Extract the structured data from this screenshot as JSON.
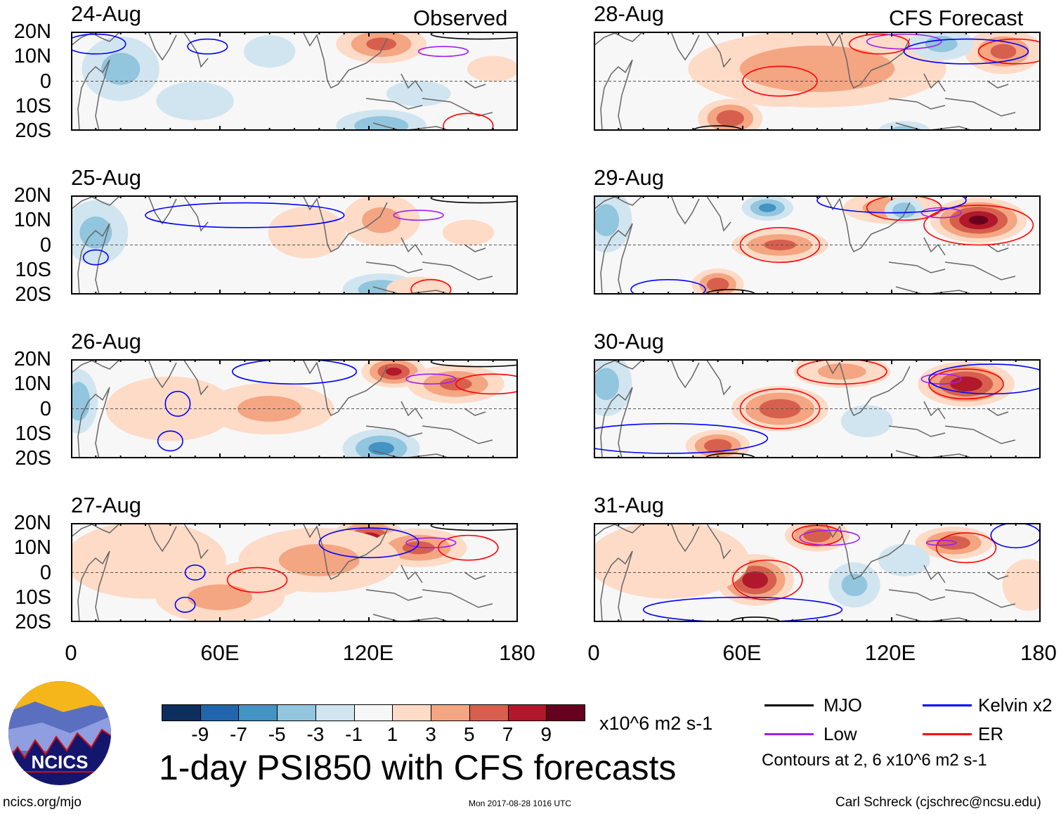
{
  "corner_labels": {
    "observed": "Observed",
    "forecast": "CFS Forecast"
  },
  "lat_labels": [
    "20N",
    "10N",
    "0",
    "10S",
    "20S"
  ],
  "lon_labels": [
    "0",
    "60E",
    "120E",
    "180"
  ],
  "panels": [
    {
      "date": "24-Aug",
      "fill": [
        [
          125,
          15,
          5,
          14,
          6
        ],
        [
          20,
          5,
          -3,
          12,
          10
        ],
        [
          125,
          -18,
          -4,
          14,
          5
        ],
        [
          50,
          -8,
          -2,
          12,
          6
        ],
        [
          170,
          5,
          2,
          8,
          4
        ],
        [
          80,
          12,
          -2,
          8,
          5
        ],
        [
          140,
          -5,
          -1,
          10,
          4
        ]
      ],
      "contours": [
        [
          "ER",
          160,
          -18,
          10,
          5
        ],
        [
          "Low",
          150,
          12,
          10,
          2
        ],
        [
          "Kelvin",
          10,
          15,
          12,
          4
        ],
        [
          "Kelvin",
          55,
          14,
          8,
          3
        ],
        [
          "MJO",
          165,
          19,
          20,
          2
        ]
      ]
    },
    {
      "date": "25-Aug",
      "fill": [
        [
          125,
          10,
          3,
          12,
          8
        ],
        [
          95,
          5,
          2,
          12,
          8
        ],
        [
          10,
          5,
          -3,
          10,
          10
        ],
        [
          125,
          -18,
          -4,
          12,
          5
        ],
        [
          160,
          5,
          2,
          8,
          4
        ],
        [
          140,
          -18,
          1,
          10,
          4
        ]
      ],
      "contours": [
        [
          "ER",
          145,
          -18,
          8,
          4
        ],
        [
          "Low",
          140,
          12,
          10,
          2
        ],
        [
          "Kelvin",
          70,
          12,
          40,
          5
        ],
        [
          "Kelvin",
          10,
          -5,
          5,
          3
        ],
        [
          "MJO",
          165,
          19,
          20,
          2
        ]
      ]
    },
    {
      "date": "26-Aug",
      "fill": [
        [
          130,
          15,
          7,
          10,
          5
        ],
        [
          155,
          10,
          5,
          15,
          6
        ],
        [
          80,
          0,
          3,
          20,
          8
        ],
        [
          40,
          0,
          2,
          20,
          10
        ],
        [
          125,
          -16,
          -5,
          12,
          6
        ],
        [
          3,
          3,
          -4,
          6,
          10
        ]
      ],
      "contours": [
        [
          "ER",
          170,
          10,
          15,
          4
        ],
        [
          "Low",
          145,
          12,
          10,
          2
        ],
        [
          "Kelvin",
          90,
          15,
          25,
          5
        ],
        [
          "Kelvin",
          43,
          2,
          5,
          5
        ],
        [
          "Kelvin",
          40,
          -13,
          5,
          4
        ],
        [
          "MJO",
          165,
          19,
          20,
          2
        ]
      ]
    },
    {
      "date": "27-Aug",
      "fill": [
        [
          120,
          12,
          9,
          12,
          8
        ],
        [
          140,
          10,
          5,
          15,
          6
        ],
        [
          75,
          -3,
          5,
          15,
          6
        ],
        [
          100,
          5,
          3,
          25,
          10
        ],
        [
          30,
          5,
          2,
          25,
          12
        ],
        [
          60,
          -10,
          3,
          20,
          8
        ]
      ],
      "contours": [
        [
          "ER",
          75,
          -3,
          12,
          5
        ],
        [
          "ER",
          160,
          10,
          12,
          5
        ],
        [
          "Low",
          145,
          12,
          10,
          2
        ],
        [
          "Kelvin",
          120,
          12,
          20,
          6
        ],
        [
          "Kelvin",
          50,
          0,
          4,
          3
        ],
        [
          "Kelvin",
          46,
          -13,
          4,
          3
        ],
        [
          "MJO",
          165,
          19,
          20,
          2
        ]
      ]
    },
    {
      "date": "28-Aug",
      "fill": [
        [
          75,
          0,
          8,
          18,
          8
        ],
        [
          115,
          12,
          7,
          15,
          6
        ],
        [
          55,
          -15,
          6,
          10,
          6
        ],
        [
          165,
          12,
          5,
          12,
          7
        ],
        [
          90,
          5,
          4,
          40,
          12
        ],
        [
          140,
          15,
          -3,
          10,
          5
        ],
        [
          125,
          -20,
          -3,
          8,
          3
        ]
      ],
      "contours": [
        [
          "ER",
          75,
          0,
          15,
          6
        ],
        [
          "ER",
          115,
          15,
          12,
          4
        ],
        [
          "ER",
          170,
          12,
          15,
          5
        ],
        [
          "Low",
          125,
          16,
          15,
          3
        ],
        [
          "Kelvin",
          150,
          12,
          25,
          5
        ],
        [
          "MJO",
          50,
          -20,
          10,
          2
        ]
      ]
    },
    {
      "date": "29-Aug",
      "fill": [
        [
          155,
          10,
          9,
          15,
          7
        ],
        [
          75,
          0,
          5,
          15,
          5
        ],
        [
          50,
          -16,
          6,
          8,
          5
        ],
        [
          120,
          15,
          4,
          15,
          5
        ],
        [
          70,
          15,
          -5,
          8,
          4
        ],
        [
          125,
          14,
          -4,
          6,
          4
        ],
        [
          5,
          10,
          -3,
          8,
          10
        ]
      ],
      "contours": [
        [
          "ER",
          75,
          0,
          16,
          7
        ],
        [
          "ER",
          125,
          15,
          15,
          5
        ],
        [
          "ER",
          155,
          8,
          22,
          8
        ],
        [
          "Low",
          140,
          13,
          8,
          2
        ],
        [
          "Kelvin",
          120,
          18,
          30,
          5
        ],
        [
          "Kelvin",
          30,
          -18,
          15,
          4
        ],
        [
          "MJO",
          55,
          -20,
          10,
          2
        ]
      ]
    },
    {
      "date": "30-Aug",
      "fill": [
        [
          150,
          10,
          8,
          15,
          7
        ],
        [
          75,
          0,
          6,
          15,
          7
        ],
        [
          50,
          -15,
          6,
          10,
          5
        ],
        [
          90,
          18,
          7,
          6,
          4
        ],
        [
          100,
          15,
          3,
          15,
          5
        ],
        [
          5,
          10,
          -3,
          8,
          10
        ],
        [
          110,
          -5,
          -2,
          8,
          5
        ]
      ],
      "contours": [
        [
          "ER",
          75,
          0,
          16,
          8
        ],
        [
          "ER",
          100,
          15,
          18,
          5
        ],
        [
          "ER",
          150,
          10,
          15,
          6
        ],
        [
          "Low",
          140,
          12,
          8,
          2
        ],
        [
          "Kelvin",
          30,
          -12,
          40,
          6
        ],
        [
          "Kelvin",
          160,
          12,
          25,
          6
        ],
        [
          "MJO",
          55,
          -20,
          10,
          2
        ]
      ]
    },
    {
      "date": "31-Aug",
      "fill": [
        [
          65,
          -3,
          8,
          12,
          8
        ],
        [
          90,
          15,
          6,
          10,
          5
        ],
        [
          145,
          12,
          6,
          12,
          5
        ],
        [
          105,
          -5,
          -3,
          8,
          7
        ],
        [
          125,
          5,
          -2,
          8,
          5
        ],
        [
          30,
          5,
          2,
          25,
          12
        ],
        [
          175,
          -5,
          2,
          8,
          8
        ]
      ],
      "contours": [
        [
          "ER",
          70,
          -3,
          14,
          8
        ],
        [
          "ER",
          90,
          15,
          10,
          4
        ],
        [
          "ER",
          150,
          10,
          12,
          6
        ],
        [
          "Low",
          95,
          14,
          12,
          3
        ],
        [
          "Low",
          140,
          12,
          6,
          1
        ],
        [
          "Kelvin",
          60,
          -15,
          40,
          5
        ],
        [
          "Kelvin",
          170,
          15,
          10,
          5
        ],
        [
          "MJO",
          65,
          -20,
          10,
          2
        ]
      ]
    }
  ],
  "colorbar": {
    "colors": [
      "#0c2f5e",
      "#2166ac",
      "#4393c3",
      "#92c5de",
      "#d1e5f0",
      "#f7f7f7",
      "#fddbc7",
      "#f4a582",
      "#d6604d",
      "#b2182b",
      "#67001f"
    ],
    "labels": [
      "-9",
      "-7",
      "-5",
      "-3",
      "-1",
      "1",
      "3",
      "5",
      "7",
      "9"
    ],
    "units": "x10^6 m2 s-1"
  },
  "title": "1-day PSI850 with CFS forecasts",
  "legend": {
    "items": [
      {
        "label": "MJO",
        "color": "#000000"
      },
      {
        "label": "Kelvin x2",
        "color": "#0000ff"
      },
      {
        "label": "Low",
        "color": "#a020f0"
      },
      {
        "label": "ER",
        "color": "#ff0000"
      }
    ],
    "note": "Contours at 2, 6 x10^6 m2 s-1"
  },
  "logo": {
    "text": "NCICS"
  },
  "footer": {
    "url": "ncics.org/mjo",
    "timestamp": "Mon 2017-08-28 1016 UTC",
    "author": "Carl Schreck (cjschrec@ncsu.edu)"
  }
}
